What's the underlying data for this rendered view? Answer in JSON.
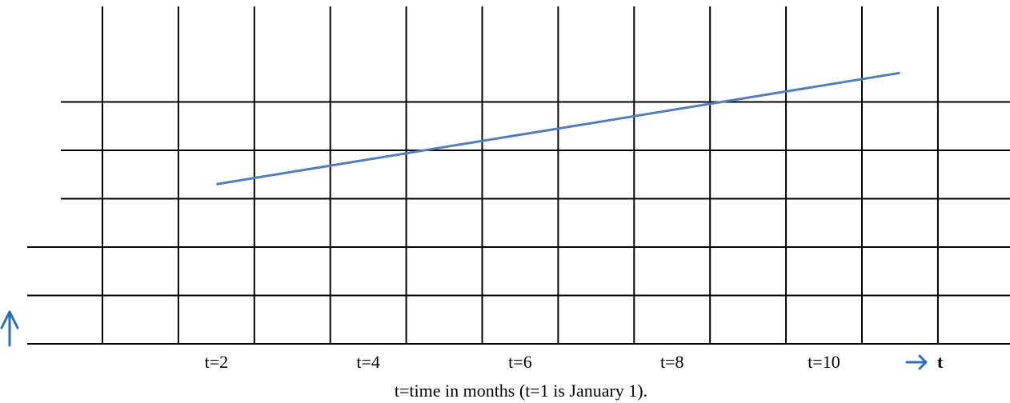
{
  "chart_data": {
    "type": "line",
    "x": [
      2.5,
      11.5
    ],
    "series": [
      {
        "values": [
          3.3,
          5.6
        ]
      }
    ],
    "xlim": [
      1,
      13
    ],
    "ylim": [
      0,
      6
    ],
    "x_ticks": [
      {
        "x": 2,
        "label": "t=2"
      },
      {
        "x": 4,
        "label": "t=4"
      },
      {
        "x": 6,
        "label": "t=6"
      },
      {
        "x": 8,
        "label": "t=8"
      },
      {
        "x": 10,
        "label": "t=10"
      }
    ],
    "x_axis_name": "t",
    "caption": "t=time in months (t=1 is January 1).",
    "grid": true,
    "colors": {
      "line": "#4f7fbf",
      "arrows": "#2a6fbf",
      "grid": "#000000"
    }
  }
}
